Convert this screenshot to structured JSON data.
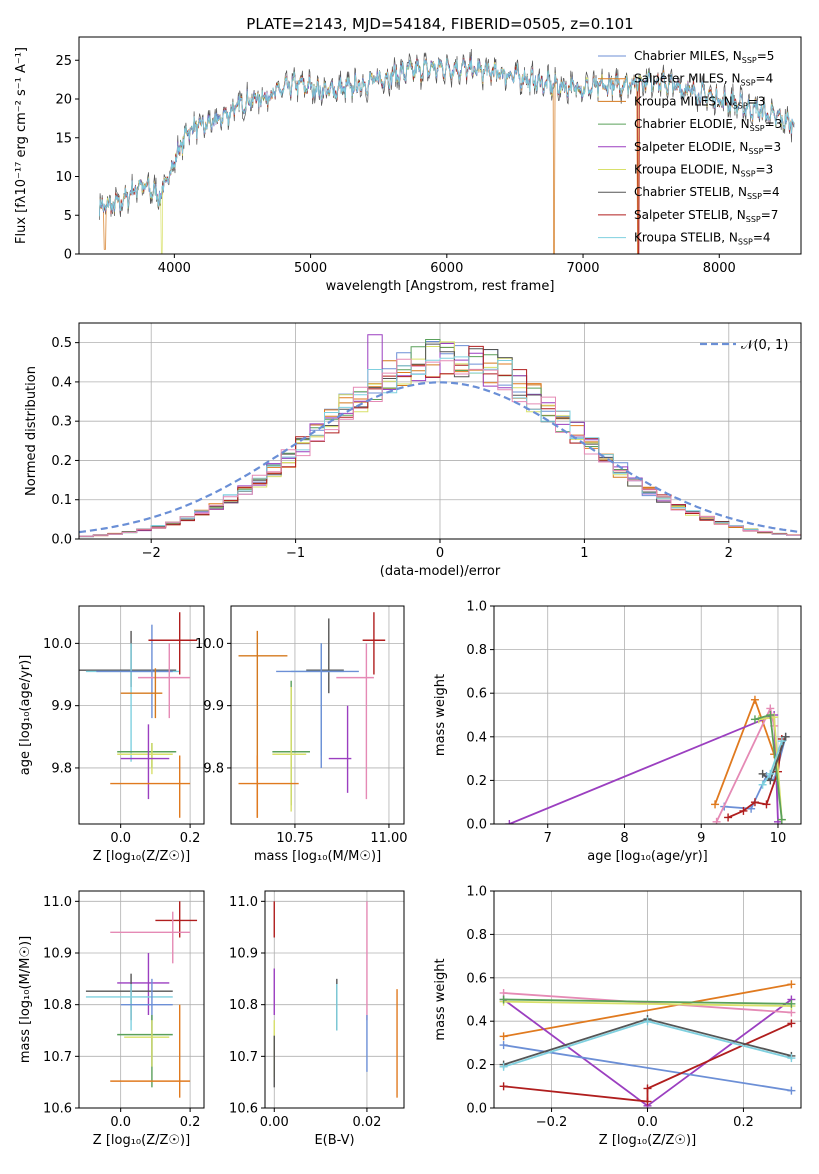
{
  "figure": {
    "title": "PLATE=2143, MJD=54184, FIBERID=0505, z=0.101"
  },
  "colors": {
    "Chabrier MILES": "#6c8fd6",
    "Salpeter MILES": "#e07a1f",
    "Kroupa MILES": "#d4791e",
    "Chabrier ELODIE": "#5aa05a",
    "Salpeter ELODIE": "#9b3fc0",
    "Kroupa ELODIE": "#d8e06a",
    "Chabrier STELIB": "#555555",
    "Salpeter STELIB": "#b01e1e",
    "Kroupa STELIB": "#7fd0df",
    "pink": "#e58ab5",
    "gaussian": "#6a8fd6"
  },
  "chart_data": [
    {
      "type": "line",
      "id": "spectrum",
      "title": "PLATE=2143, MJD=54184, FIBERID=0505, z=0.101",
      "xlabel": "wavelength [Angstrom, rest frame]",
      "ylabel": "Flux [fλ10⁻¹⁷ erg cm⁻² s⁻¹ A⁻¹]",
      "xlim": [
        3300,
        8600
      ],
      "ylim": [
        0,
        28
      ],
      "xticks": [
        4000,
        5000,
        6000,
        7000,
        8000
      ],
      "yticks": [
        0,
        5,
        10,
        15,
        20,
        25
      ],
      "grid": false,
      "legend_position": "top-right",
      "legend": [
        "Chabrier MILES, N_SSP=5",
        "Salpeter MILES, N_SSP=4",
        "Kroupa MILES, N_SSP=3",
        "Chabrier ELODIE, N_SSP=3",
        "Salpeter ELODIE, N_SSP=3",
        "Kroupa ELODIE, N_SSP=3",
        "Chabrier STELIB, N_SSP=4",
        "Salpeter STELIB, N_SSP=7",
        "Kroupa STELIB, N_SSP=4"
      ],
      "continuum": {
        "x": [
          3450,
          3600,
          3750,
          3900,
          4000,
          4100,
          4300,
          4500,
          4700,
          4900,
          5100,
          5300,
          5500,
          5700,
          5900,
          6100,
          6300,
          6500,
          6700,
          6900,
          7100,
          7300,
          7500,
          7700,
          7900,
          8100,
          8300,
          8500
        ],
        "y": [
          6,
          6.5,
          9,
          7.5,
          12,
          16,
          17,
          19.5,
          20.5,
          22,
          21,
          21.5,
          22.5,
          23.5,
          24,
          24,
          23.5,
          23,
          22,
          21.5,
          21.5,
          22,
          22.5,
          21.5,
          20.5,
          19.5,
          18.5,
          17
        ]
      }
    },
    {
      "type": "line",
      "id": "residuals",
      "xlabel": "(data-model)/error",
      "ylabel": "Normed distribution",
      "xlim": [
        -2.5,
        2.5
      ],
      "ylim": [
        0,
        0.55
      ],
      "xticks": [
        -2,
        -1,
        0,
        1,
        2
      ],
      "yticks": [
        0.0,
        0.1,
        0.2,
        0.3,
        0.4,
        0.5
      ],
      "grid": true,
      "legend_position": "top-right",
      "legend": [
        "𝒩(0, 1)"
      ],
      "bin_width": 0.1
    },
    {
      "type": "scatter",
      "id": "age-Z",
      "xlabel": "Z [log₁₀(Z/Z☉)]",
      "ylabel": "age  [log₁₀(age/yr)]",
      "xlim": [
        -0.12,
        0.24
      ],
      "ylim": [
        9.71,
        10.06
      ],
      "xticks": [
        0.0,
        0.2
      ],
      "yticks": [
        9.8,
        9.9,
        10.0
      ],
      "grid": true,
      "points": [
        {
          "c": "#555555",
          "x": 0.03,
          "xe": [
            -0.12,
            0.16
          ],
          "y": 9.957,
          "ye": [
            9.93,
            10.02
          ]
        },
        {
          "c": "#7fd0df",
          "x": 0.03,
          "xe": [
            -0.1,
            0.17
          ],
          "y": 9.955,
          "ye": [
            9.81,
            10.0
          ]
        },
        {
          "c": "#6c8fd6",
          "x": 0.09,
          "xe": [
            -0.07,
            0.15
          ],
          "y": 9.955,
          "ye": [
            9.88,
            10.03
          ]
        },
        {
          "c": "#b01e1e",
          "x": 0.17,
          "xe": [
            0.08,
            0.22
          ],
          "y": 10.005,
          "ye": [
            9.95,
            10.05
          ]
        },
        {
          "c": "#e58ab5",
          "x": 0.14,
          "xe": [
            0.05,
            0.2
          ],
          "y": 9.945,
          "ye": [
            9.88,
            10.0
          ]
        },
        {
          "c": "#d4791e",
          "x": 0.1,
          "xe": [
            0.0,
            0.12
          ],
          "y": 9.92,
          "ye": [
            9.88,
            9.96
          ]
        },
        {
          "c": "#5aa05a",
          "x": 0.09,
          "xe": [
            -0.01,
            0.16
          ],
          "y": 9.826,
          "ye": [
            9.8,
            9.84
          ]
        },
        {
          "c": "#d8e06a",
          "x": 0.09,
          "xe": [
            -0.01,
            0.15
          ],
          "y": 9.822,
          "ye": [
            9.79,
            9.84
          ]
        },
        {
          "c": "#9b3fc0",
          "x": 0.08,
          "xe": [
            0.0,
            0.14
          ],
          "y": 9.815,
          "ye": [
            9.75,
            9.87
          ]
        },
        {
          "c": "#e07a1f",
          "x": 0.17,
          "xe": [
            -0.03,
            0.2
          ],
          "y": 9.775,
          "ye": [
            9.72,
            9.82
          ]
        }
      ]
    },
    {
      "type": "scatter",
      "id": "age-mass",
      "xlabel": "mass [log₁₀(M/M☉)]",
      "ylabel": "",
      "xlim": [
        10.58,
        11.04
      ],
      "ylim": [
        9.71,
        10.06
      ],
      "xticks": [
        10.75,
        11.0
      ],
      "yticks": [
        9.8,
        9.9,
        10.0
      ],
      "grid": true,
      "points": [
        {
          "c": "#555555",
          "x": 10.84,
          "xe": [
            10.78,
            10.88
          ],
          "y": 9.957,
          "ye": [
            9.92,
            10.04
          ]
        },
        {
          "c": "#7fd0df",
          "x": 10.82,
          "xe": [
            10.74,
            10.88
          ],
          "y": 9.955,
          "ye": [
            9.82,
            10.0
          ]
        },
        {
          "c": "#6c8fd6",
          "x": 10.82,
          "xe": [
            10.7,
            10.92
          ],
          "y": 9.955,
          "ye": [
            9.8,
            10.0
          ]
        },
        {
          "c": "#b01e1e",
          "x": 10.96,
          "xe": [
            10.93,
            10.99
          ],
          "y": 10.005,
          "ye": [
            9.95,
            10.05
          ]
        },
        {
          "c": "#e58ab5",
          "x": 10.94,
          "xe": [
            10.86,
            10.96
          ],
          "y": 9.945,
          "ye": [
            9.75,
            10.0
          ]
        },
        {
          "c": "#d4791e",
          "x": 10.65,
          "xe": [
            10.6,
            10.73
          ],
          "y": 9.98,
          "ye": [
            9.72,
            10.02
          ]
        },
        {
          "c": "#5aa05a",
          "x": 10.74,
          "xe": [
            10.69,
            10.79
          ],
          "y": 9.826,
          "ye": [
            9.74,
            9.94
          ]
        },
        {
          "c": "#d8e06a",
          "x": 10.74,
          "xe": [
            10.69,
            10.78
          ],
          "y": 9.822,
          "ye": [
            9.73,
            9.93
          ]
        },
        {
          "c": "#9b3fc0",
          "x": 10.89,
          "xe": [
            10.84,
            10.9
          ],
          "y": 9.815,
          "ye": [
            9.76,
            9.9
          ]
        },
        {
          "c": "#e07a1f",
          "x": 10.65,
          "xe": [
            10.6,
            10.76
          ],
          "y": 9.775,
          "ye": [
            9.72,
            9.82
          ]
        }
      ]
    },
    {
      "type": "line",
      "id": "weight-age",
      "xlabel": "age  [log₁₀(age/yr)]",
      "ylabel": "mass weight",
      "xlim": [
        6.3,
        10.3
      ],
      "ylim": [
        0,
        1
      ],
      "xticks": [
        7,
        8,
        9,
        10
      ],
      "yticks": [
        0.0,
        0.2,
        0.4,
        0.6,
        0.8,
        1.0
      ],
      "grid": true,
      "series": [
        {
          "c": "#e07a1f",
          "x": [
            9.18,
            9.7,
            9.95
          ],
          "y": [
            0.09,
            0.57,
            0.32
          ]
        },
        {
          "c": "#9b3fc0",
          "x": [
            6.5,
            9.95,
            10.0
          ],
          "y": [
            0.0,
            0.5,
            0.01
          ]
        },
        {
          "c": "#6c8fd6",
          "x": [
            9.3,
            9.65,
            9.85,
            9.95,
            10.1
          ],
          "y": [
            0.08,
            0.07,
            0.22,
            0.2,
            0.4
          ]
        },
        {
          "c": "#b01e1e",
          "x": [
            9.35,
            9.55,
            9.7,
            9.85,
            10.0,
            10.05
          ],
          "y": [
            0.03,
            0.06,
            0.1,
            0.09,
            0.24,
            0.39
          ]
        },
        {
          "c": "#e58ab5",
          "x": [
            9.2,
            9.9,
            9.95
          ],
          "y": [
            0.01,
            0.53,
            0.45
          ]
        },
        {
          "c": "#d8e06a",
          "x": [
            9.75,
            9.95,
            10.05
          ],
          "y": [
            0.48,
            0.49,
            0.02
          ]
        },
        {
          "c": "#5aa05a",
          "x": [
            9.7,
            9.9,
            10.05
          ],
          "y": [
            0.48,
            0.5,
            0.02
          ]
        },
        {
          "c": "#555555",
          "x": [
            9.8,
            9.9,
            10.1
          ],
          "y": [
            0.23,
            0.2,
            0.4
          ]
        },
        {
          "c": "#7fd0df",
          "x": [
            9.8,
            9.9,
            10.05
          ],
          "y": [
            0.18,
            0.23,
            0.38
          ]
        }
      ]
    },
    {
      "type": "scatter",
      "id": "mass-Z",
      "xlabel": "Z [log₁₀(Z/Z☉)]",
      "ylabel": "mass [log₁₀(M/M☉)]",
      "xlim": [
        -0.12,
        0.24
      ],
      "ylim": [
        10.6,
        11.02
      ],
      "xticks": [
        0.0,
        0.2
      ],
      "yticks": [
        10.6,
        10.7,
        10.8,
        10.9,
        11.0
      ],
      "grid": true,
      "points": [
        {
          "c": "#b01e1e",
          "x": 0.17,
          "xe": [
            0.1,
            0.22
          ],
          "y": 10.963,
          "ye": [
            10.93,
            11.0
          ]
        },
        {
          "c": "#e58ab5",
          "x": 0.15,
          "xe": [
            -0.03,
            0.2
          ],
          "y": 10.94,
          "ye": [
            10.88,
            10.98
          ]
        },
        {
          "c": "#9b3fc0",
          "x": 0.08,
          "xe": [
            -0.01,
            0.14
          ],
          "y": 10.842,
          "ye": [
            10.78,
            10.9
          ]
        },
        {
          "c": "#555555",
          "x": 0.03,
          "xe": [
            -0.1,
            0.15
          ],
          "y": 10.826,
          "ye": [
            10.77,
            10.86
          ]
        },
        {
          "c": "#7fd0df",
          "x": 0.03,
          "xe": [
            -0.1,
            0.15
          ],
          "y": 10.815,
          "ye": [
            10.75,
            10.84
          ]
        },
        {
          "c": "#6c8fd6",
          "x": 0.09,
          "xe": [
            0.0,
            0.15
          ],
          "y": 10.8,
          "ye": [
            10.68,
            10.85
          ]
        },
        {
          "c": "#5aa05a",
          "x": 0.09,
          "xe": [
            -0.01,
            0.15
          ],
          "y": 10.742,
          "ye": [
            10.64,
            10.78
          ]
        },
        {
          "c": "#d8e06a",
          "x": 0.09,
          "xe": [
            0.01,
            0.14
          ],
          "y": 10.737,
          "ye": [
            10.68,
            10.77
          ]
        },
        {
          "c": "#e07a1f",
          "x": 0.17,
          "xe": [
            -0.03,
            0.2
          ],
          "y": 10.652,
          "ye": [
            10.62,
            10.8
          ]
        }
      ]
    },
    {
      "type": "scatter",
      "id": "mass-EBV",
      "xlabel": "E(B-V)",
      "ylabel": "",
      "xlim": [
        -0.002,
        0.028
      ],
      "ylim": [
        10.6,
        11.02
      ],
      "xticks": [
        0.0,
        0.02
      ],
      "yticks": [
        10.6,
        10.7,
        10.8,
        10.9,
        11.0
      ],
      "grid": true,
      "points": [
        {
          "c": "#b01e1e",
          "x": 0.0,
          "xe": [
            0.0,
            0.0
          ],
          "y": 10.96,
          "ye": [
            10.93,
            11.0
          ]
        },
        {
          "c": "#9b3fc0",
          "x": 0.0,
          "xe": [
            0.0,
            0.0
          ],
          "y": 10.84,
          "ye": [
            10.78,
            10.87
          ]
        },
        {
          "c": "#d8e06a",
          "x": 0.0,
          "xe": [
            0.0,
            0.0
          ],
          "y": 10.72,
          "ye": [
            10.66,
            10.77
          ]
        },
        {
          "c": "#555555",
          "x": 0.0,
          "xe": [
            0.0,
            0.0
          ],
          "y": 10.7,
          "ye": [
            10.64,
            10.74
          ]
        },
        {
          "c": "#555555",
          "x": 0.0135,
          "xe": [
            0.0135,
            0.0135
          ],
          "y": 10.8,
          "ye": [
            10.75,
            10.85
          ]
        },
        {
          "c": "#7fd0df",
          "x": 0.0135,
          "xe": [
            0.0135,
            0.0135
          ],
          "y": 10.8,
          "ye": [
            10.75,
            10.84
          ]
        },
        {
          "c": "#e58ab5",
          "x": 0.02,
          "xe": [
            0.02,
            0.02
          ],
          "y": 10.9,
          "ye": [
            10.77,
            11.0
          ]
        },
        {
          "c": "#6c8fd6",
          "x": 0.02,
          "xe": [
            0.02,
            0.02
          ],
          "y": 10.73,
          "ye": [
            10.67,
            10.78
          ]
        },
        {
          "c": "#e07a1f",
          "x": 0.0265,
          "xe": [
            0.0265,
            0.0265
          ],
          "y": 10.73,
          "ye": [
            10.62,
            10.83
          ]
        }
      ]
    },
    {
      "type": "line",
      "id": "weight-Z",
      "xlabel": "Z [log₁₀(Z/Z☉)]",
      "ylabel": "mass weight",
      "xlim": [
        -0.32,
        0.32
      ],
      "ylim": [
        0,
        1
      ],
      "xticks": [
        -0.2,
        0.0,
        0.2
      ],
      "yticks": [
        0.0,
        0.2,
        0.4,
        0.6,
        0.8,
        1.0
      ],
      "grid": true,
      "series": [
        {
          "c": "#e07a1f",
          "x": [
            -0.3,
            0.3
          ],
          "y": [
            0.33,
            0.57
          ]
        },
        {
          "c": "#9b3fc0",
          "x": [
            -0.3,
            0.0,
            0.3
          ],
          "y": [
            0.5,
            0.01,
            0.5
          ]
        },
        {
          "c": "#6c8fd6",
          "x": [
            -0.3,
            0.3
          ],
          "y": [
            0.29,
            0.08
          ]
        },
        {
          "c": "#b01e1e",
          "x": [
            -0.3,
            0.0,
            0.0,
            0.3
          ],
          "y": [
            0.1,
            0.03,
            0.09,
            0.39
          ]
        },
        {
          "c": "#e58ab5",
          "x": [
            -0.3,
            0.3
          ],
          "y": [
            0.53,
            0.44
          ]
        },
        {
          "c": "#d8e06a",
          "x": [
            -0.3,
            0.3
          ],
          "y": [
            0.49,
            0.47
          ]
        },
        {
          "c": "#5aa05a",
          "x": [
            -0.3,
            0.3
          ],
          "y": [
            0.5,
            0.48
          ]
        },
        {
          "c": "#555555",
          "x": [
            -0.3,
            0.0,
            0.3
          ],
          "y": [
            0.2,
            0.41,
            0.24
          ]
        },
        {
          "c": "#7fd0df",
          "x": [
            -0.3,
            0.0,
            0.3
          ],
          "y": [
            0.19,
            0.4,
            0.23
          ]
        }
      ]
    }
  ]
}
